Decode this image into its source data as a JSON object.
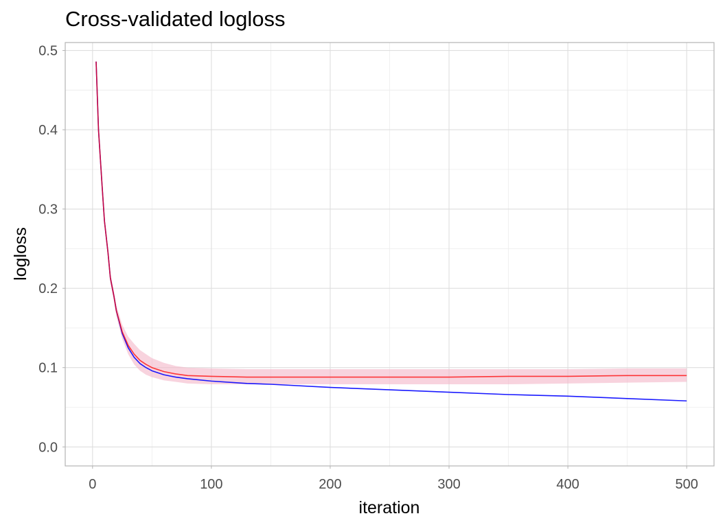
{
  "chart_data": {
    "type": "line",
    "title": "Cross-validated logloss",
    "xlabel": "iteration",
    "ylabel": "logloss",
    "xlim": [
      -23,
      523
    ],
    "ylim": [
      -0.024,
      0.51
    ],
    "x_ticks": [
      0,
      100,
      200,
      300,
      400,
      500
    ],
    "y_ticks": [
      0.0,
      0.1,
      0.2,
      0.3,
      0.4,
      0.5
    ],
    "y_tick_labels": [
      "0.0",
      "0.1",
      "0.2",
      "0.3",
      "0.4",
      "0.5"
    ],
    "grid": true,
    "legend": "none",
    "series": [
      {
        "color": "#FF0000",
        "band_color": "#F4B6C8",
        "x": [
          3,
          5,
          8,
          10,
          13,
          15,
          18,
          20,
          25,
          30,
          35,
          40,
          45,
          50,
          60,
          70,
          80,
          100,
          130,
          150,
          200,
          250,
          300,
          350,
          400,
          450,
          500
        ],
        "values": [
          0.486,
          0.4,
          0.33,
          0.285,
          0.245,
          0.213,
          0.19,
          0.172,
          0.145,
          0.128,
          0.117,
          0.109,
          0.104,
          0.1,
          0.095,
          0.092,
          0.09,
          0.089,
          0.088,
          0.088,
          0.088,
          0.088,
          0.088,
          0.089,
          0.089,
          0.09,
          0.09
        ],
        "lower": [
          0.482,
          0.395,
          0.325,
          0.28,
          0.24,
          0.207,
          0.184,
          0.165,
          0.136,
          0.117,
          0.104,
          0.096,
          0.091,
          0.088,
          0.084,
          0.082,
          0.08,
          0.079,
          0.079,
          0.079,
          0.079,
          0.079,
          0.079,
          0.079,
          0.08,
          0.081,
          0.082
        ],
        "upper": [
          0.49,
          0.405,
          0.335,
          0.29,
          0.25,
          0.219,
          0.196,
          0.179,
          0.154,
          0.139,
          0.13,
          0.122,
          0.117,
          0.112,
          0.106,
          0.102,
          0.1,
          0.099,
          0.098,
          0.098,
          0.098,
          0.098,
          0.098,
          0.098,
          0.098,
          0.099,
          0.099
        ]
      },
      {
        "color": "#0000FF",
        "x": [
          3,
          5,
          8,
          10,
          13,
          15,
          18,
          20,
          25,
          30,
          35,
          40,
          45,
          50,
          60,
          70,
          80,
          100,
          130,
          150,
          200,
          250,
          300,
          350,
          400,
          450,
          500
        ],
        "values": [
          0.486,
          0.4,
          0.33,
          0.285,
          0.245,
          0.213,
          0.19,
          0.172,
          0.143,
          0.125,
          0.113,
          0.105,
          0.1,
          0.096,
          0.091,
          0.088,
          0.086,
          0.083,
          0.08,
          0.079,
          0.075,
          0.072,
          0.069,
          0.066,
          0.064,
          0.061,
          0.058
        ]
      }
    ]
  }
}
